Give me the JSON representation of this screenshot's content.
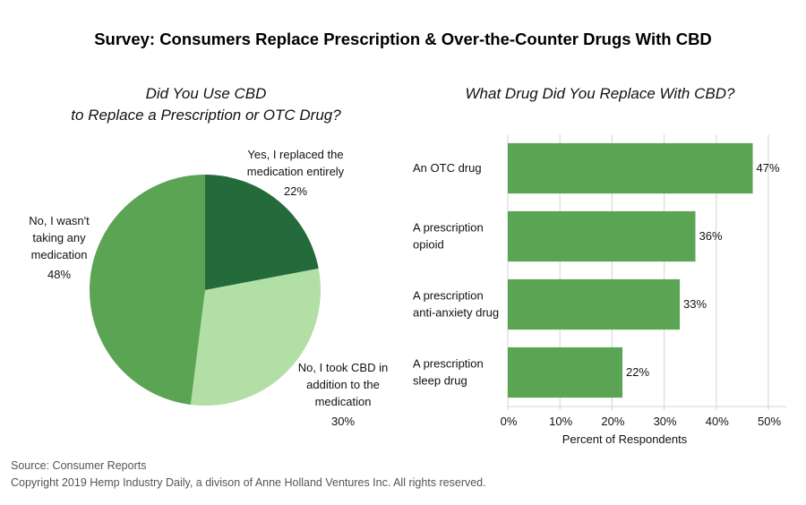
{
  "title": "Survey: Consumers Replace Prescription & Over-the-Counter Drugs With CBD",
  "footer": {
    "source": "Source: Consumer Reports",
    "copyright": "Copyright 2019 Hemp Industry Daily, a divison of Anne Holland Ventures Inc. All rights reserved."
  },
  "chart_data": [
    {
      "type": "pie",
      "title_lines": [
        "Did You Use CBD",
        "to Replace a Prescription or OTC Drug?"
      ],
      "slices": [
        {
          "label_lines": [
            "Yes, I replaced the",
            "medication entirely"
          ],
          "value": 22,
          "value_label": "22%",
          "color": "#246b3c"
        },
        {
          "label_lines": [
            "No, I took CBD in",
            "addition to the",
            "medication"
          ],
          "value": 30,
          "value_label": "30%",
          "color": "#b2dfa6"
        },
        {
          "label_lines": [
            "No, I wasn't",
            "taking any",
            "medication"
          ],
          "value": 48,
          "value_label": "48%",
          "color": "#5ba453"
        }
      ]
    },
    {
      "type": "bar",
      "orientation": "horizontal",
      "title": "What Drug Did You Replace With CBD?",
      "categories": [
        [
          "An OTC drug"
        ],
        [
          "A prescription",
          "opioid"
        ],
        [
          "A prescription",
          "anti-anxiety drug"
        ],
        [
          "A prescription",
          "sleep drug"
        ]
      ],
      "values": [
        47,
        36,
        33,
        22
      ],
      "value_labels": [
        "47%",
        "36%",
        "33%",
        "22%"
      ],
      "xlabel": "Percent of Respondents",
      "xlim": [
        0,
        50
      ],
      "xticks": [
        0,
        10,
        20,
        30,
        40,
        50
      ],
      "xtick_labels": [
        "0%",
        "10%",
        "20%",
        "30%",
        "40%",
        "50%"
      ],
      "grid": true,
      "bar_color": "#5ba453",
      "grid_color": "#d4d4d4"
    }
  ]
}
